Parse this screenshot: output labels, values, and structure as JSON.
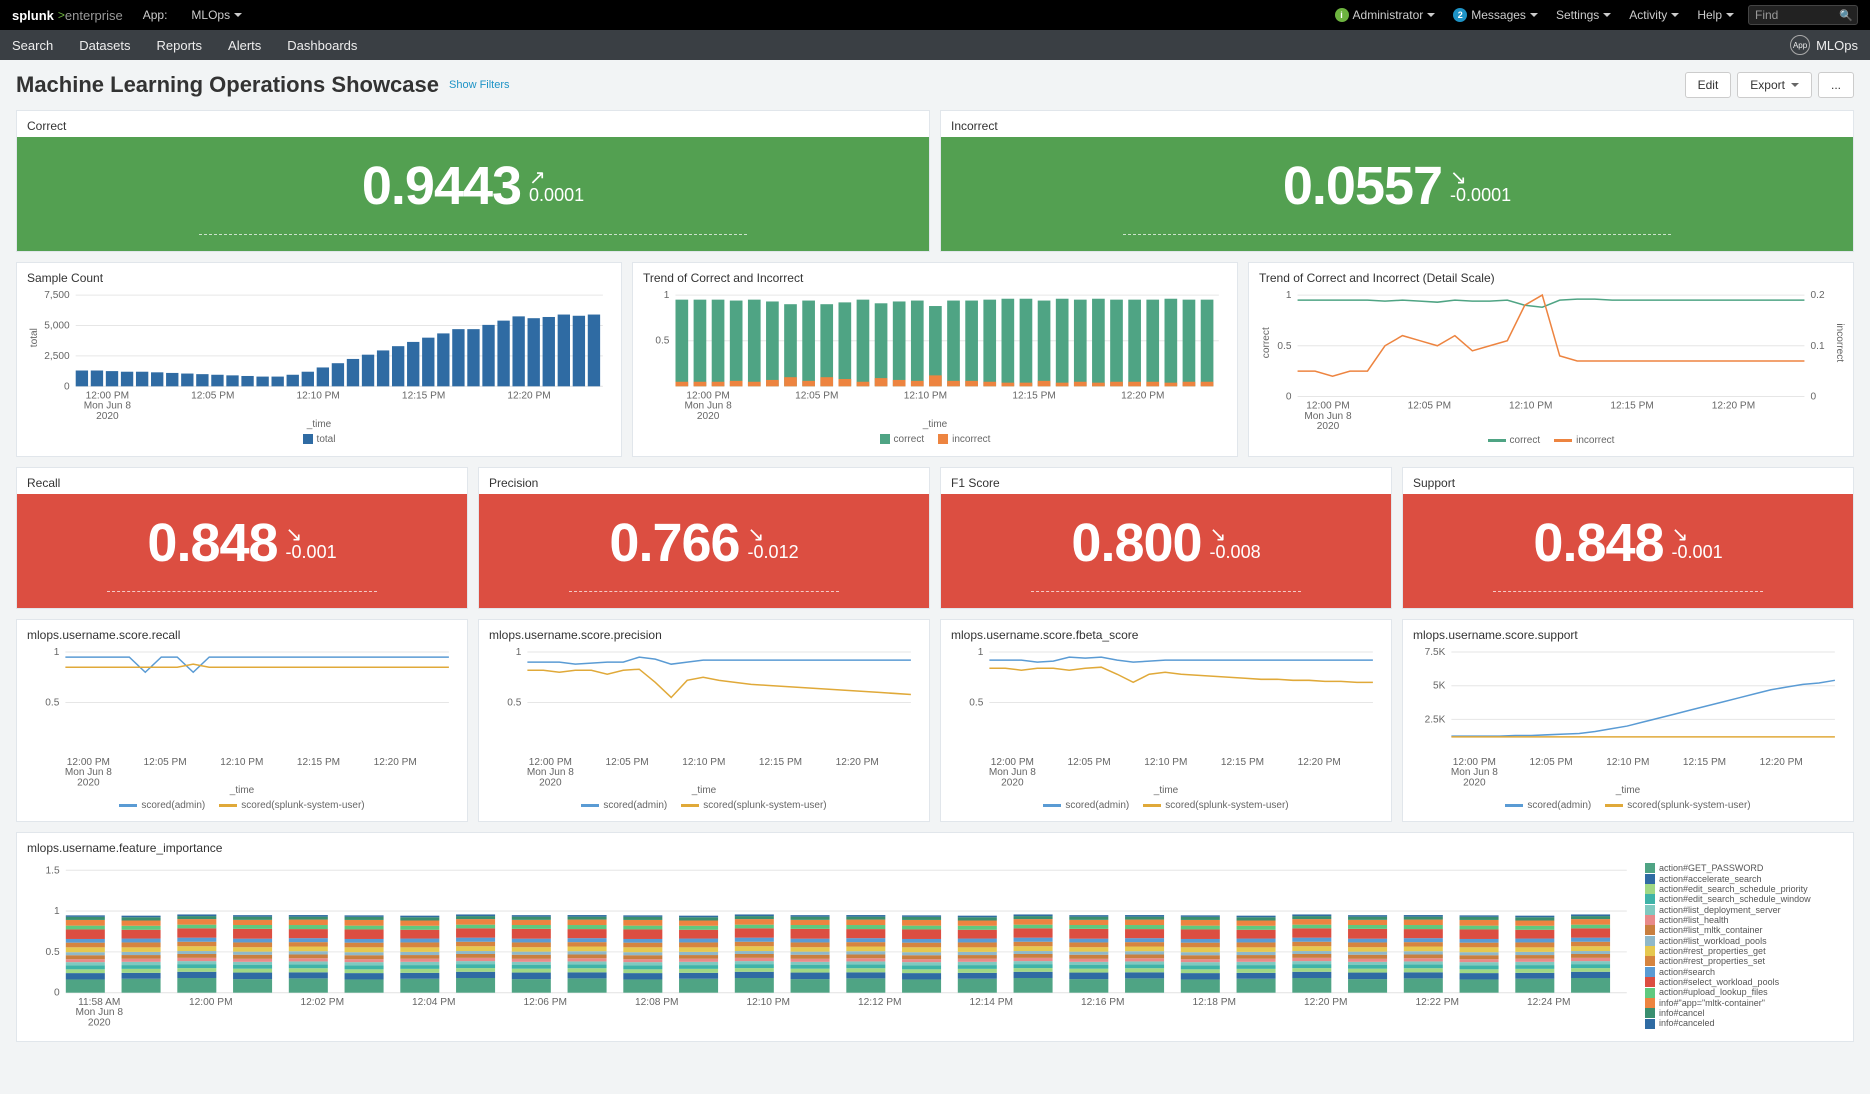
{
  "header": {
    "brand": "splunk",
    "brand_sub": "enterprise",
    "app_label": "App:",
    "app_name": "MLOps",
    "admin_label": "Administrator",
    "messages_label": "Messages",
    "messages_count": "2",
    "settings_label": "Settings",
    "activity_label": "Activity",
    "help_label": "Help",
    "find_placeholder": "Find"
  },
  "nav": {
    "items": [
      "Search",
      "Datasets",
      "Reports",
      "Alerts",
      "Dashboards"
    ],
    "app_title": "MLOps",
    "app_badge": "App"
  },
  "page": {
    "title": "Machine Learning Operations Showcase",
    "show_filters": "Show Filters",
    "edit_btn": "Edit",
    "export_btn": "Export",
    "more_btn": "..."
  },
  "colors": {
    "green": "#53a051",
    "red": "#dc4e41",
    "blue": "#2f6ba3",
    "orange": "#ed8440",
    "teal": "#4fa484",
    "line_blue": "#5a9bd4",
    "line_yellow": "#e0a939",
    "grid": "#e6e6e6",
    "axis_text": "#666666"
  },
  "singles": {
    "correct": {
      "title": "Correct",
      "value": "0.9443",
      "delta": "0.0001",
      "up": true,
      "color": "green"
    },
    "incorrect": {
      "title": "Incorrect",
      "value": "0.0557",
      "delta": "-0.0001",
      "up": false,
      "color": "green"
    },
    "recall": {
      "title": "Recall",
      "value": "0.848",
      "delta": "-0.001",
      "up": false,
      "color": "red"
    },
    "precision": {
      "title": "Precision",
      "value": "0.766",
      "delta": "-0.012",
      "up": false,
      "color": "red"
    },
    "f1": {
      "title": "F1 Score",
      "value": "0.800",
      "delta": "-0.008",
      "up": false,
      "color": "red"
    },
    "support": {
      "title": "Support",
      "value": "0.848",
      "delta": "-0.001",
      "up": false,
      "color": "red"
    }
  },
  "sample_count": {
    "title": "Sample Count",
    "y_ticks": [
      0,
      2500,
      5000,
      7500
    ],
    "y_axis_label": "total",
    "x_ticks": [
      "12:00 PM",
      "12:05 PM",
      "12:10 PM",
      "12:15 PM",
      "12:20 PM"
    ],
    "x_subs": [
      "Mon Jun 8",
      "2020"
    ],
    "x_axis_title": "_time",
    "legend": [
      {
        "label": "total",
        "color": "#2f6ba3"
      }
    ],
    "values": [
      1300,
      1300,
      1250,
      1200,
      1200,
      1150,
      1100,
      1050,
      1000,
      950,
      900,
      850,
      800,
      800,
      950,
      1200,
      1550,
      1900,
      2250,
      2600,
      2950,
      3300,
      3650,
      4000,
      4350,
      4700,
      4700,
      5050,
      5400,
      5750,
      5600,
      5700,
      5900,
      5800,
      5900
    ]
  },
  "trend_bars": {
    "title": "Trend of Correct and Incorrect",
    "y_ticks": [
      0.5,
      1
    ],
    "x_ticks": [
      "12:00 PM",
      "12:05 PM",
      "12:10 PM",
      "12:15 PM",
      "12:20 PM"
    ],
    "x_subs": [
      "Mon Jun 8",
      "2020"
    ],
    "x_axis_title": "_time",
    "legend": [
      {
        "label": "correct",
        "color": "#4fa484"
      },
      {
        "label": "incorrect",
        "color": "#ed8440"
      }
    ],
    "correct": [
      0.95,
      0.95,
      0.95,
      0.94,
      0.95,
      0.93,
      0.9,
      0.94,
      0.9,
      0.92,
      0.95,
      0.91,
      0.93,
      0.94,
      0.88,
      0.94,
      0.94,
      0.95,
      0.96,
      0.96,
      0.94,
      0.96,
      0.95,
      0.96,
      0.95,
      0.95,
      0.95,
      0.96,
      0.95,
      0.95
    ],
    "incorrect": [
      0.05,
      0.05,
      0.05,
      0.06,
      0.05,
      0.07,
      0.1,
      0.06,
      0.1,
      0.08,
      0.05,
      0.09,
      0.07,
      0.06,
      0.12,
      0.06,
      0.06,
      0.05,
      0.04,
      0.04,
      0.06,
      0.04,
      0.05,
      0.04,
      0.05,
      0.05,
      0.05,
      0.04,
      0.05,
      0.05
    ]
  },
  "trend_lines": {
    "title": "Trend of Correct and Incorrect (Detail Scale)",
    "y_left_ticks": [
      0,
      0.5,
      1
    ],
    "y_right_ticks": [
      0,
      0.1,
      0.2
    ],
    "y_left_label": "correct",
    "y_right_label": "incorrect",
    "x_ticks": [
      "12:00 PM",
      "12:05 PM",
      "12:10 PM",
      "12:15 PM",
      "12:20 PM"
    ],
    "x_subs": [
      "Mon Jun 8",
      "2020"
    ],
    "legend": [
      {
        "label": "correct",
        "color": "#4fa484"
      },
      {
        "label": "incorrect",
        "color": "#ed8440"
      }
    ],
    "correct": [
      0.95,
      0.95,
      0.95,
      0.95,
      0.95,
      0.94,
      0.95,
      0.94,
      0.93,
      0.95,
      0.94,
      0.94,
      0.95,
      0.9,
      0.88,
      0.95,
      0.96,
      0.96,
      0.95,
      0.95,
      0.95,
      0.95,
      0.95,
      0.95,
      0.95,
      0.95,
      0.95,
      0.95,
      0.95,
      0.95
    ],
    "incorrect": [
      0.05,
      0.05,
      0.04,
      0.05,
      0.05,
      0.1,
      0.12,
      0.11,
      0.1,
      0.12,
      0.09,
      0.1,
      0.11,
      0.18,
      0.2,
      0.08,
      0.07,
      0.07,
      0.07,
      0.07,
      0.07,
      0.07,
      0.07,
      0.07,
      0.07,
      0.07,
      0.07,
      0.07,
      0.07,
      0.07
    ]
  },
  "small_lines": [
    {
      "title": "mlops.username.score.recall",
      "y_ticks": [
        0.5,
        1
      ],
      "x_axis_title": "_time",
      "x_ticks": [
        "12:00 PM",
        "12:05 PM",
        "12:10 PM",
        "12:15 PM",
        "12:20 PM"
      ],
      "x_subs": [
        "Mon Jun 8",
        "2020"
      ],
      "legend": [
        {
          "label": "scored(admin)",
          "color": "#5a9bd4"
        },
        {
          "label": "scored(splunk-system-user)",
          "color": "#e0a939"
        }
      ],
      "s1": [
        0.95,
        0.95,
        0.95,
        0.95,
        0.95,
        0.8,
        0.95,
        0.95,
        0.8,
        0.95,
        0.95,
        0.95,
        0.95,
        0.95,
        0.95,
        0.95,
        0.95,
        0.95,
        0.95,
        0.95,
        0.95,
        0.95,
        0.95,
        0.95,
        0.95
      ],
      "s2": [
        0.85,
        0.85,
        0.85,
        0.85,
        0.85,
        0.85,
        0.85,
        0.85,
        0.88,
        0.85,
        0.85,
        0.85,
        0.85,
        0.85,
        0.85,
        0.85,
        0.85,
        0.85,
        0.85,
        0.85,
        0.85,
        0.85,
        0.85,
        0.85,
        0.85
      ]
    },
    {
      "title": "mlops.username.score.precision",
      "y_ticks": [
        0.5,
        1
      ],
      "x_axis_title": "_time",
      "x_ticks": [
        "12:00 PM",
        "12:05 PM",
        "12:10 PM",
        "12:15 PM",
        "12:20 PM"
      ],
      "x_subs": [
        "Mon Jun 8",
        "2020"
      ],
      "legend": [
        {
          "label": "scored(admin)",
          "color": "#5a9bd4"
        },
        {
          "label": "scored(splunk-system-user)",
          "color": "#e0a939"
        }
      ],
      "s1": [
        0.9,
        0.9,
        0.9,
        0.88,
        0.89,
        0.9,
        0.9,
        0.95,
        0.93,
        0.88,
        0.9,
        0.92,
        0.92,
        0.92,
        0.92,
        0.92,
        0.92,
        0.92,
        0.92,
        0.92,
        0.92,
        0.92,
        0.92,
        0.92,
        0.92
      ],
      "s2": [
        0.82,
        0.82,
        0.8,
        0.82,
        0.82,
        0.78,
        0.82,
        0.83,
        0.7,
        0.55,
        0.72,
        0.75,
        0.72,
        0.7,
        0.68,
        0.67,
        0.66,
        0.65,
        0.64,
        0.63,
        0.62,
        0.61,
        0.6,
        0.59,
        0.58
      ]
    },
    {
      "title": "mlops.username.score.fbeta_score",
      "y_ticks": [
        0.5,
        1
      ],
      "x_axis_title": "_time",
      "x_ticks": [
        "12:00 PM",
        "12:05 PM",
        "12:10 PM",
        "12:15 PM",
        "12:20 PM"
      ],
      "x_subs": [
        "Mon Jun 8",
        "2020"
      ],
      "legend": [
        {
          "label": "scored(admin)",
          "color": "#5a9bd4"
        },
        {
          "label": "scored(splunk-system-user)",
          "color": "#e0a939"
        }
      ],
      "s1": [
        0.92,
        0.92,
        0.92,
        0.9,
        0.91,
        0.95,
        0.94,
        0.95,
        0.92,
        0.9,
        0.91,
        0.92,
        0.92,
        0.92,
        0.92,
        0.92,
        0.92,
        0.92,
        0.92,
        0.92,
        0.92,
        0.92,
        0.92,
        0.92,
        0.92
      ],
      "s2": [
        0.84,
        0.84,
        0.82,
        0.84,
        0.84,
        0.82,
        0.84,
        0.85,
        0.78,
        0.7,
        0.78,
        0.8,
        0.78,
        0.77,
        0.76,
        0.75,
        0.74,
        0.73,
        0.73,
        0.72,
        0.72,
        0.71,
        0.71,
        0.7,
        0.7
      ]
    },
    {
      "title": "mlops.username.score.support",
      "y_ticks": [
        2500,
        5000,
        7500
      ],
      "y_format": "K",
      "x_axis_title": "_time",
      "x_ticks": [
        "12:00 PM",
        "12:05 PM",
        "12:10 PM",
        "12:15 PM",
        "12:20 PM"
      ],
      "x_subs": [
        "Mon Jun 8",
        "2020"
      ],
      "legend": [
        {
          "label": "scored(admin)",
          "color": "#5a9bd4"
        },
        {
          "label": "scored(splunk-system-user)",
          "color": "#e0a939"
        }
      ],
      "s1": [
        1250,
        1250,
        1250,
        1250,
        1300,
        1300,
        1350,
        1400,
        1450,
        1600,
        1800,
        2000,
        2300,
        2600,
        2900,
        3200,
        3500,
        3800,
        4100,
        4400,
        4700,
        4900,
        5100,
        5200,
        5400
      ],
      "s2": [
        1200,
        1200,
        1200,
        1200,
        1200,
        1200,
        1200,
        1200,
        1200,
        1200,
        1200,
        1200,
        1200,
        1200,
        1200,
        1200,
        1200,
        1200,
        1200,
        1200,
        1200,
        1200,
        1200,
        1200,
        1200
      ]
    }
  ],
  "feature_importance": {
    "title": "mlops.username.feature_importance",
    "y_ticks": [
      0,
      0.5,
      1,
      1.5
    ],
    "x_ticks": [
      "11:58 AM",
      "12:00 PM",
      "12:02 PM",
      "12:04 PM",
      "12:06 PM",
      "12:08 PM",
      "12:10 PM",
      "12:12 PM",
      "12:14 PM",
      "12:16 PM",
      "12:18 PM",
      "12:20 PM",
      "12:22 PM",
      "12:24 PM"
    ],
    "x_subs": [
      "Mon Jun 8",
      "2020"
    ],
    "segments": [
      {
        "label": "action#GET_PASSWORD",
        "color": "#4fa484"
      },
      {
        "label": "action#accelerate_search",
        "color": "#2f6ba3"
      },
      {
        "label": "action#edit_search_schedule_priority",
        "color": "#a0d884"
      },
      {
        "label": "action#edit_search_schedule_window",
        "color": "#3fb3a8"
      },
      {
        "label": "action#list_deployment_server",
        "color": "#7fc9c0"
      },
      {
        "label": "action#list_health",
        "color": "#e88a8a"
      },
      {
        "label": "action#list_mltk_container",
        "color": "#c97f3f"
      },
      {
        "label": "action#list_workload_pools",
        "color": "#8fb8c9"
      },
      {
        "label": "action#rest_properties_get",
        "color": "#e6c84f"
      },
      {
        "label": "action#rest_properties_set",
        "color": "#d6843f"
      },
      {
        "label": "action#search",
        "color": "#5a9bd4"
      },
      {
        "label": "action#select_workload_pools",
        "color": "#dc4e41"
      },
      {
        "label": "action#upload_lookup_files",
        "color": "#5fc97f"
      },
      {
        "label": "info#\"app=\"mltk-container\"",
        "color": "#ed8440"
      },
      {
        "label": "info#cancel",
        "color": "#3a8f6f"
      },
      {
        "label": "info#canceled",
        "color": "#2f6ba3"
      }
    ],
    "bars": 28,
    "stack_pattern": [
      0.18,
      0.08,
      0.05,
      0.05,
      0.04,
      0.04,
      0.05,
      0.04,
      0.06,
      0.06,
      0.05,
      0.12,
      0.05,
      0.07,
      0.04,
      0.02
    ]
  }
}
